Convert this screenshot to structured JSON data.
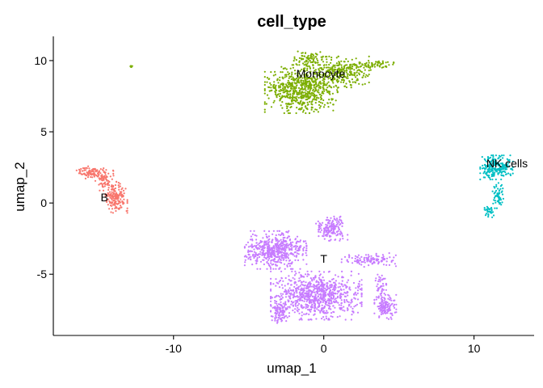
{
  "chart_data": {
    "type": "scatter",
    "title": "cell_type",
    "xlabel": "umap_1",
    "ylabel": "umap_2",
    "xlim": [
      -18,
      14
    ],
    "ylim": [
      -9.3,
      11.7
    ],
    "xticks": [
      -10,
      0,
      10
    ],
    "yticks": [
      10,
      5,
      0,
      -5
    ],
    "grid": false,
    "legend": "none",
    "series": [
      {
        "name": "B",
        "color": "#F8766D",
        "label_pos": [
          -14.6,
          0.4
        ],
        "blobs": [
          {
            "cx": -13.8,
            "cy": 0.4,
            "rx": 0.6,
            "ry": 0.9,
            "n": 170
          },
          {
            "cx": -15.5,
            "cy": 2.2,
            "rx": 0.8,
            "ry": 0.4,
            "n": 90
          },
          {
            "cx": -14.6,
            "cy": 1.6,
            "rx": 0.5,
            "ry": 0.6,
            "n": 60
          }
        ]
      },
      {
        "name": "Monocyte",
        "color": "#7CAE00",
        "label_pos": [
          -0.2,
          9.1
        ],
        "blobs": [
          {
            "cx": -1.5,
            "cy": 8.0,
            "rx": 2.0,
            "ry": 1.4,
            "n": 650
          },
          {
            "cx": 1.2,
            "cy": 9.2,
            "rx": 1.5,
            "ry": 0.9,
            "n": 260
          },
          {
            "cx": 3.2,
            "cy": 9.7,
            "rx": 1.2,
            "ry": 0.3,
            "n": 70
          },
          {
            "cx": -0.9,
            "cy": 10.1,
            "rx": 0.9,
            "ry": 0.45,
            "n": 80
          },
          {
            "cx": -12.8,
            "cy": 9.6,
            "rx": 0.08,
            "ry": 0.08,
            "n": 6
          }
        ]
      },
      {
        "name": "NK cells",
        "color": "#00BFC4",
        "label_pos": [
          12.2,
          2.8
        ],
        "blobs": [
          {
            "cx": 11.5,
            "cy": 2.5,
            "rx": 0.9,
            "ry": 0.7,
            "n": 230
          },
          {
            "cx": 11.6,
            "cy": 0.6,
            "rx": 0.3,
            "ry": 0.8,
            "n": 60
          },
          {
            "cx": 11.0,
            "cy": -0.6,
            "rx": 0.3,
            "ry": 0.4,
            "n": 30
          }
        ]
      },
      {
        "name": "T",
        "color": "#C77CFF",
        "label_pos": [
          0.0,
          -3.9
        ],
        "blobs": [
          {
            "cx": -3.2,
            "cy": -3.3,
            "rx": 1.7,
            "ry": 1.1,
            "n": 520
          },
          {
            "cx": -0.5,
            "cy": -6.5,
            "rx": 2.5,
            "ry": 1.4,
            "n": 820
          },
          {
            "cx": 0.5,
            "cy": -1.8,
            "rx": 0.9,
            "ry": 0.7,
            "n": 170
          },
          {
            "cx": 3.0,
            "cy": -4.0,
            "rx": 1.5,
            "ry": 0.4,
            "n": 110
          },
          {
            "cx": 4.1,
            "cy": -7.3,
            "rx": 0.6,
            "ry": 0.7,
            "n": 130
          },
          {
            "cx": -2.9,
            "cy": -7.7,
            "rx": 0.5,
            "ry": 0.6,
            "n": 80
          },
          {
            "cx": 3.8,
            "cy": -5.8,
            "rx": 0.3,
            "ry": 0.9,
            "n": 45
          }
        ]
      }
    ]
  }
}
